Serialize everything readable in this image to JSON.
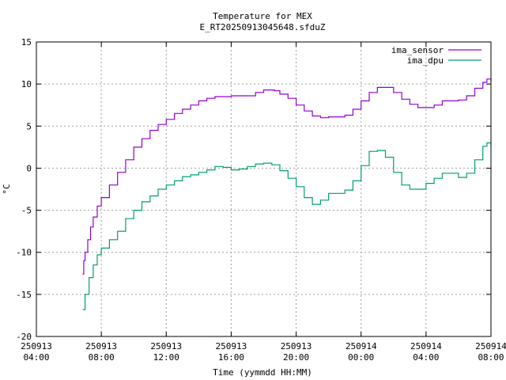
{
  "chart_data": {
    "type": "line",
    "title": "Temperature for MEX",
    "subtitle": "E_RT20250913045648.sfduZ",
    "xlabel": "Time (yymmdd HH:MM)",
    "ylabel": "°C",
    "xlim": [
      "250913 04:00",
      "250914 08:00"
    ],
    "ylim": [
      -20,
      15
    ],
    "grid": true,
    "legend_position": "top-right",
    "x_ticks": [
      {
        "day": "250913",
        "time": "04:00"
      },
      {
        "day": "250913",
        "time": "08:00"
      },
      {
        "day": "250913",
        "time": "12:00"
      },
      {
        "day": "250913",
        "time": "16:00"
      },
      {
        "day": "250913",
        "time": "20:00"
      },
      {
        "day": "250914",
        "time": "00:00"
      },
      {
        "day": "250914",
        "time": "04:00"
      },
      {
        "day": "250914",
        "time": "08:00"
      }
    ],
    "y_ticks": [
      "15",
      "10",
      "5",
      "0",
      "-5",
      "-10",
      "-15",
      "-20"
    ],
    "series": [
      {
        "name": "ima_sensor",
        "color": "#9400d3",
        "points": [
          [
            "250913 06:51",
            -12.6
          ],
          [
            "250913 06:55",
            -11.0
          ],
          [
            "250913 07:00",
            -10.0
          ],
          [
            "250913 07:10",
            -8.5
          ],
          [
            "250913 07:20",
            -7.0
          ],
          [
            "250913 07:30",
            -5.8
          ],
          [
            "250913 07:45",
            -4.5
          ],
          [
            "250913 08:00",
            -3.5
          ],
          [
            "250913 08:30",
            -2.0
          ],
          [
            "250913 09:00",
            -0.5
          ],
          [
            "250913 09:30",
            1.0
          ],
          [
            "250913 10:00",
            2.5
          ],
          [
            "250913 10:30",
            3.5
          ],
          [
            "250913 11:00",
            4.5
          ],
          [
            "250913 11:30",
            5.2
          ],
          [
            "250913 12:00",
            5.8
          ],
          [
            "250913 12:30",
            6.5
          ],
          [
            "250913 13:00",
            7.0
          ],
          [
            "250913 13:30",
            7.5
          ],
          [
            "250913 14:00",
            8.0
          ],
          [
            "250913 14:30",
            8.3
          ],
          [
            "250913 15:00",
            8.5
          ],
          [
            "250913 16:00",
            8.6
          ],
          [
            "250913 17:00",
            8.6
          ],
          [
            "250913 17:30",
            9.0
          ],
          [
            "250913 18:00",
            9.3
          ],
          [
            "250913 18:40",
            9.2
          ],
          [
            "250913 19:00",
            8.8
          ],
          [
            "250913 19:30",
            8.3
          ],
          [
            "250913 20:00",
            7.5
          ],
          [
            "250913 20:30",
            6.8
          ],
          [
            "250913 21:00",
            6.2
          ],
          [
            "250913 21:30",
            6.0
          ],
          [
            "250913 22:00",
            6.1
          ],
          [
            "250913 23:00",
            6.3
          ],
          [
            "250913 23:30",
            7.0
          ],
          [
            "250914 00:00",
            8.0
          ],
          [
            "250914 00:30",
            9.0
          ],
          [
            "250914 01:00",
            9.6
          ],
          [
            "250914 01:30",
            9.6
          ],
          [
            "250914 02:00",
            9.0
          ],
          [
            "250914 02:30",
            8.2
          ],
          [
            "250914 03:00",
            7.6
          ],
          [
            "250914 03:30",
            7.2
          ],
          [
            "250914 04:00",
            7.2
          ],
          [
            "250914 04:30",
            7.5
          ],
          [
            "250914 05:00",
            8.0
          ],
          [
            "250914 06:00",
            8.1
          ],
          [
            "250914 06:30",
            8.6
          ],
          [
            "250914 07:00",
            9.5
          ],
          [
            "250914 07:30",
            10.2
          ],
          [
            "250914 07:45",
            10.6
          ],
          [
            "250914 08:00",
            10.2
          ]
        ]
      },
      {
        "name": "ima_dpu",
        "color": "#009e73",
        "points": [
          [
            "250913 06:51",
            -16.8
          ],
          [
            "250913 07:00",
            -15.0
          ],
          [
            "250913 07:15",
            -13.0
          ],
          [
            "250913 07:30",
            -11.5
          ],
          [
            "250913 07:45",
            -10.3
          ],
          [
            "250913 08:00",
            -9.5
          ],
          [
            "250913 08:30",
            -8.5
          ],
          [
            "250913 09:00",
            -7.5
          ],
          [
            "250913 09:30",
            -6.0
          ],
          [
            "250913 10:00",
            -5.0
          ],
          [
            "250913 10:30",
            -4.0
          ],
          [
            "250913 11:00",
            -3.3
          ],
          [
            "250913 11:30",
            -2.5
          ],
          [
            "250913 12:00",
            -2.0
          ],
          [
            "250913 12:30",
            -1.5
          ],
          [
            "250913 13:00",
            -1.0
          ],
          [
            "250913 13:30",
            -0.8
          ],
          [
            "250913 14:00",
            -0.5
          ],
          [
            "250913 14:30",
            -0.2
          ],
          [
            "250913 15:00",
            0.2
          ],
          [
            "250913 15:30",
            0.1
          ],
          [
            "250913 16:00",
            -0.2
          ],
          [
            "250913 16:30",
            -0.1
          ],
          [
            "250913 17:00",
            0.2
          ],
          [
            "250913 17:30",
            0.5
          ],
          [
            "250913 18:00",
            0.6
          ],
          [
            "250913 18:30",
            0.4
          ],
          [
            "250913 19:00",
            -0.3
          ],
          [
            "250913 19:30",
            -1.2
          ],
          [
            "250913 20:00",
            -2.2
          ],
          [
            "250913 20:30",
            -3.5
          ],
          [
            "250913 21:00",
            -4.3
          ],
          [
            "250913 21:30",
            -3.8
          ],
          [
            "250913 22:00",
            -3.0
          ],
          [
            "250913 22:30",
            -3.0
          ],
          [
            "250913 23:00",
            -2.6
          ],
          [
            "250913 23:30",
            -1.5
          ],
          [
            "250914 00:00",
            0.3
          ],
          [
            "250914 00:30",
            2.0
          ],
          [
            "250914 01:00",
            2.1
          ],
          [
            "250914 01:30",
            1.3
          ],
          [
            "250914 02:00",
            -0.5
          ],
          [
            "250914 02:30",
            -2.0
          ],
          [
            "250914 03:00",
            -2.5
          ],
          [
            "250914 03:30",
            -2.5
          ],
          [
            "250914 04:00",
            -1.8
          ],
          [
            "250914 04:30",
            -1.2
          ],
          [
            "250914 05:00",
            -0.6
          ],
          [
            "250914 05:30",
            -0.6
          ],
          [
            "250914 06:00",
            -1.1
          ],
          [
            "250914 06:30",
            -0.6
          ],
          [
            "250914 07:00",
            1.0
          ],
          [
            "250914 07:30",
            2.6
          ],
          [
            "250914 07:45",
            3.0
          ],
          [
            "250914 08:00",
            2.6
          ]
        ]
      }
    ]
  }
}
